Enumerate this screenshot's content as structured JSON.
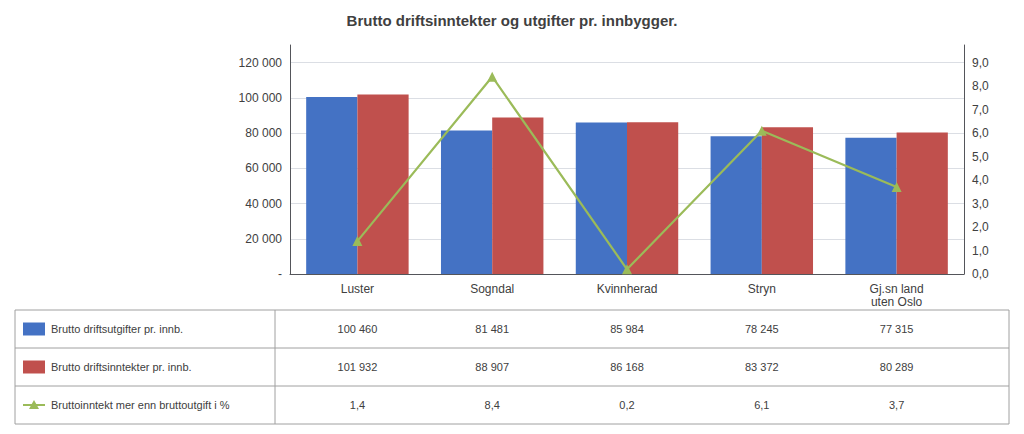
{
  "chart_data": {
    "type": "bar",
    "title": "Brutto driftsinntekter og utgifter pr. innbygger.",
    "categories": [
      "Luster",
      "Sogndal",
      "Kvinnherad",
      "Stryn",
      "Gj.sn land\nuten Oslo"
    ],
    "series": [
      {
        "name": "Brutto driftsutgifter pr. innb.",
        "type": "bar",
        "color": "#4472C4",
        "values": [
          100460,
          81481,
          85984,
          78245,
          77315
        ],
        "value_labels": [
          "100 460",
          "81 481",
          "85 984",
          "78 245",
          "77 315"
        ]
      },
      {
        "name": "Brutto driftsinntekter pr. innb.",
        "type": "bar",
        "color": "#C0504D",
        "values": [
          101932,
          88907,
          86168,
          83372,
          80289
        ],
        "value_labels": [
          "101 932",
          "88 907",
          "86 168",
          "83 372",
          "80 289"
        ]
      },
      {
        "name": "Bruttoinntekt mer enn bruttoutgift i %",
        "type": "line",
        "axis": "y2",
        "color": "#9BBB59",
        "marker": "triangle",
        "values": [
          1.4,
          8.4,
          0.2,
          6.1,
          3.7
        ],
        "value_labels": [
          "1,4",
          "8,4",
          "0,2",
          "6,1",
          "3,7"
        ]
      }
    ],
    "ylim": [
      0,
      130000
    ],
    "yticks": [
      {
        "value": 0,
        "label": "-"
      },
      {
        "value": 20000,
        "label": "20 000"
      },
      {
        "value": 40000,
        "label": "40 000"
      },
      {
        "value": 60000,
        "label": "60 000"
      },
      {
        "value": 80000,
        "label": "80 000"
      },
      {
        "value": 100000,
        "label": "100 000"
      },
      {
        "value": 120000,
        "label": "120 000"
      }
    ],
    "y2lim": [
      0,
      9.75
    ],
    "y2ticks": [
      {
        "value": 0,
        "label": "0,0"
      },
      {
        "value": 1,
        "label": "1,0"
      },
      {
        "value": 2,
        "label": "2,0"
      },
      {
        "value": 3,
        "label": "3,0"
      },
      {
        "value": 4,
        "label": "4,0"
      },
      {
        "value": 5,
        "label": "5,0"
      },
      {
        "value": 6,
        "label": "6,0"
      },
      {
        "value": 7,
        "label": "7,0"
      },
      {
        "value": 8,
        "label": "8,0"
      },
      {
        "value": 9,
        "label": "9,0"
      }
    ],
    "grid": true
  }
}
